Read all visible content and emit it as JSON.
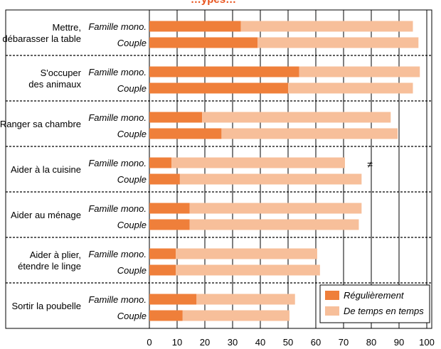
{
  "title_fragment": "…ypes…",
  "chart_data": {
    "type": "bar",
    "orientation": "horizontal",
    "stacked": true,
    "xlim": [
      0,
      100
    ],
    "xticks": [
      0,
      10,
      20,
      30,
      40,
      50,
      60,
      70,
      80,
      90,
      100
    ],
    "grid": "vertical dashed",
    "legend_position": "bottom-right",
    "groups": [
      "Famille mono.",
      "Couple"
    ],
    "categories": [
      "Mettre,\ndébarasser la table",
      "S'occuper\ndes animaux",
      "Ranger sa chambre",
      "Aider à la cuisine",
      "Aider au ménage",
      "Aider à plier,\nétendre le linge",
      "Sortir la poubelle"
    ],
    "series": [
      {
        "name": "Régulièrement",
        "color": "#ef7f3a",
        "values": [
          [
            33,
            39
          ],
          [
            54,
            50
          ],
          [
            19,
            26
          ],
          [
            8,
            11
          ],
          [
            14.5,
            14.5
          ],
          [
            9.5,
            9.5
          ],
          [
            17,
            12
          ]
        ]
      },
      {
        "name": "De temps en temps",
        "color": "#f7bf9a",
        "values": [
          [
            62,
            58
          ],
          [
            43.5,
            45
          ],
          [
            68,
            63.5
          ],
          [
            62.5,
            65.5
          ],
          [
            62,
            61
          ],
          [
            51,
            52
          ],
          [
            35.5,
            38.5
          ]
        ]
      }
    ],
    "annotations": [
      {
        "text": "≠",
        "category": "Aider à la cuisine"
      }
    ]
  }
}
